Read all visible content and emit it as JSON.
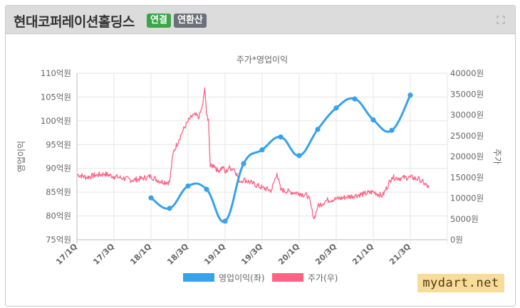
{
  "header": {
    "company": "현대코퍼레이션홀딩스",
    "badge_consolidated": "연결",
    "badge_annualized": "연환산",
    "expand_icon": "expand-icon"
  },
  "watermark": "mydart.net",
  "chart_data": {
    "type": "line",
    "title": "주가*영업이익",
    "categories": [
      "17/1Q",
      "17/3Q",
      "18/1Q",
      "18/3Q",
      "19/1Q",
      "19/3Q",
      "20/1Q",
      "20/3Q",
      "21/1Q",
      "21/3Q"
    ],
    "y_left": {
      "label": "영업이익",
      "min": 75,
      "max": 110,
      "step": 5,
      "ticks": [
        "75억원",
        "80억원",
        "85억원",
        "90억원",
        "95억원",
        "100억원",
        "105억원",
        "110억원"
      ]
    },
    "y_right": {
      "label": "주가",
      "min": 0,
      "max": 40000,
      "step": 5000,
      "ticks": [
        "0원",
        "5000원",
        "10000원",
        "15000원",
        "20000원",
        "25000원",
        "30000원",
        "35000원",
        "40000원"
      ]
    },
    "grid": true,
    "legend_position": "bottom",
    "series": [
      {
        "name": "영업이익(좌)",
        "axis": "left",
        "color": "#36a2eb",
        "x": [
          2,
          2.5,
          3,
          3.5,
          4,
          4.5,
          5,
          5.5,
          6,
          6.5,
          7,
          7.5,
          8,
          8.5,
          9
        ],
        "values": [
          83.8,
          81.6,
          86.3,
          85.6,
          78.9,
          91.0,
          93.9,
          96.6,
          92.7,
          98.2,
          102.7,
          104.6,
          100.2,
          98.0,
          105.4
        ]
      },
      {
        "name": "주가(우)",
        "axis": "right",
        "color": "#ff6384",
        "x": [
          0,
          0.25,
          0.5,
          0.75,
          1,
          1.25,
          1.5,
          1.75,
          2,
          2.25,
          2.5,
          2.6,
          2.75,
          2.85,
          3,
          3.15,
          3.3,
          3.4,
          3.45,
          3.5,
          3.55,
          3.6,
          3.7,
          3.8,
          3.95,
          4,
          4.1,
          4.25,
          4.4,
          4.5,
          4.75,
          5,
          5.25,
          5.4,
          5.5,
          5.75,
          6,
          6.25,
          6.4,
          6.5,
          6.75,
          7,
          7.25,
          7.5,
          7.75,
          8,
          8.25,
          8.5,
          8.75,
          9,
          9.25,
          9.5
        ],
        "values": [
          15700,
          15000,
          15500,
          15800,
          15200,
          14800,
          14300,
          14700,
          15200,
          14000,
          13800,
          21000,
          24000,
          26000,
          28500,
          30000,
          29500,
          32500,
          36500,
          30000,
          29000,
          17500,
          18000,
          16500,
          17500,
          16000,
          17300,
          17000,
          14000,
          14500,
          13500,
          12500,
          11800,
          16000,
          12000,
          11500,
          11200,
          10500,
          5000,
          8000,
          9500,
          9800,
          10200,
          10600,
          11000,
          11500,
          10500,
          15000,
          14800,
          15000,
          14500,
          12500
        ]
      }
    ]
  }
}
